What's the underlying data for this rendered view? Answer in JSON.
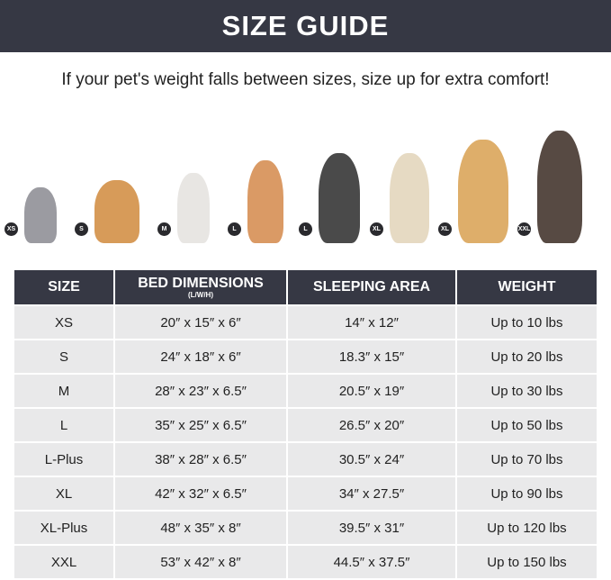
{
  "title": "SIZE GUIDE",
  "subtitle": "If your pet's weight falls between sizes, size up for extra comfort!",
  "pets": [
    {
      "badge": "XS",
      "color": "#8a8a90"
    },
    {
      "badge": "S",
      "color": "#d08a3c"
    },
    {
      "badge": "M",
      "color": "#e4e2de"
    },
    {
      "badge": "L",
      "color": "#d4884a"
    },
    {
      "badge": "L",
      "color": "#2a2a2a"
    },
    {
      "badge": "XL",
      "color": "#e2d4b8"
    },
    {
      "badge": "XL",
      "color": "#d8a050"
    },
    {
      "badge": "XXL",
      "color": "#3a2a22"
    }
  ],
  "table": {
    "headers": [
      "SIZE",
      "BED DIMENSIONS",
      "SLEEPING AREA",
      "WEIGHT"
    ],
    "header_sub": "(L/W/H)",
    "rows": [
      [
        "XS",
        "20″ x 15″ x 6″",
        "14″ x 12″",
        "Up to 10 lbs"
      ],
      [
        "S",
        "24″ x 18″ x 6″",
        "18.3″ x 15″",
        "Up to 20 lbs"
      ],
      [
        "M",
        "28″ x 23″ x 6.5″",
        "20.5″ x 19″",
        "Up to 30 lbs"
      ],
      [
        "L",
        "35″ x 25″ x 6.5″",
        "26.5″ x 20″",
        "Up to 50 lbs"
      ],
      [
        "L-Plus",
        "38″ x 28″ x 6.5″",
        "30.5″ x 24″",
        "Up to 70 lbs"
      ],
      [
        "XL",
        "42″ x 32″ x 6.5″",
        "34″ x 27.5″",
        "Up to 90 lbs"
      ],
      [
        "XL-Plus",
        "48″ x 35″ x 8″",
        "39.5″ x 31″",
        "Up to 120 lbs"
      ],
      [
        "XXL",
        "53″ x 42″ x 8″",
        "44.5″ x 37.5″",
        "Up to 150 lbs"
      ]
    ]
  }
}
